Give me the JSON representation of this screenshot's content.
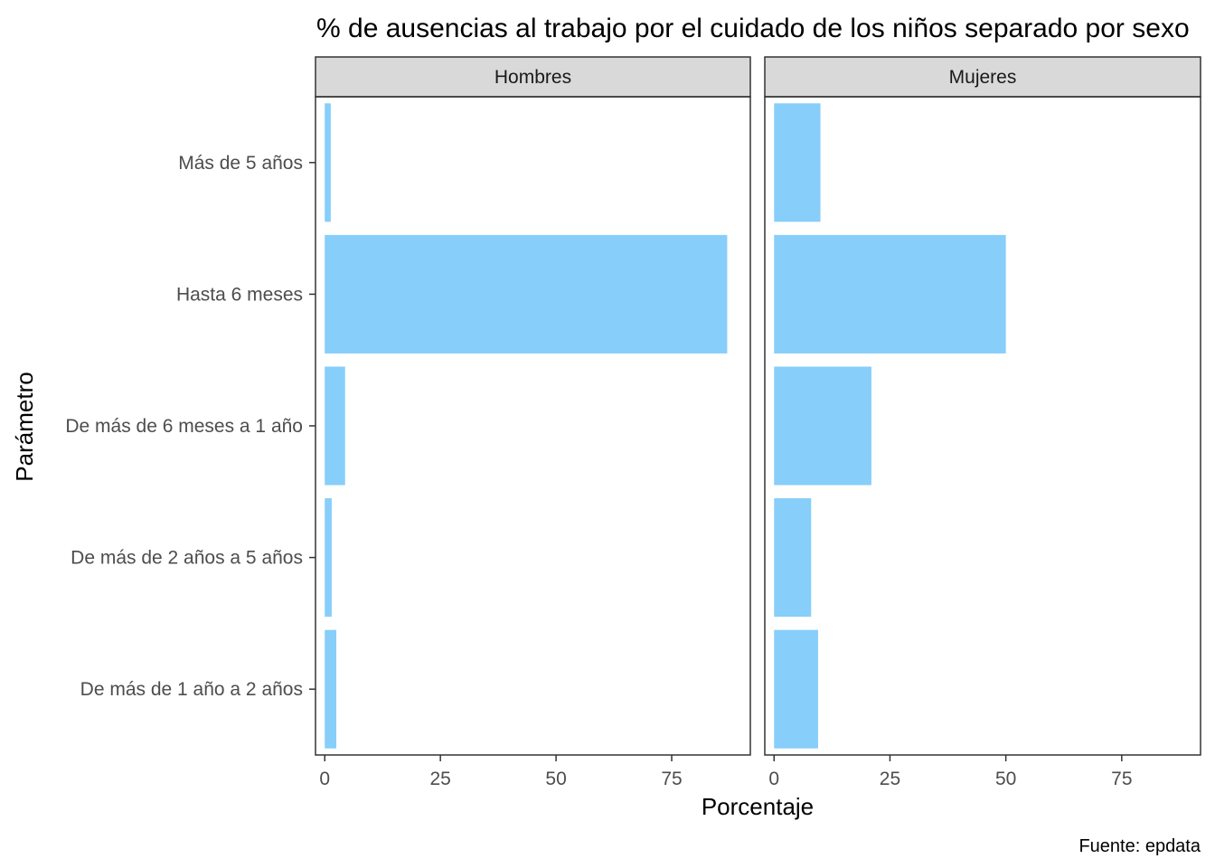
{
  "chart_data": {
    "type": "bar",
    "orientation": "horizontal",
    "title": "% de ausencias al trabajo por el cuidado de los niños separado por sexo",
    "xlabel": "Porcentaje",
    "ylabel": "Parámetro",
    "caption": "Fuente: epdata",
    "categories": [
      "Más de 5 años",
      "Hasta 6 meses",
      "De más de 6 meses a 1 año",
      "De más de 2 años a 5 años",
      "De más de 1 año a 2 años"
    ],
    "xlim": [
      -2,
      92
    ],
    "xticks": [
      0,
      25,
      50,
      75
    ],
    "xtick_labels": [
      "0",
      "25",
      "50",
      "75"
    ],
    "panels": [
      {
        "name": "Hombres",
        "values": [
          1.3,
          87.0,
          4.4,
          1.5,
          2.5
        ]
      },
      {
        "name": "Mujeres",
        "values": [
          10.0,
          50.0,
          21.0,
          8.0,
          9.5
        ]
      }
    ],
    "bar_color": "#87CEFA",
    "strip_color": "#D9D9D9",
    "grid": false
  }
}
